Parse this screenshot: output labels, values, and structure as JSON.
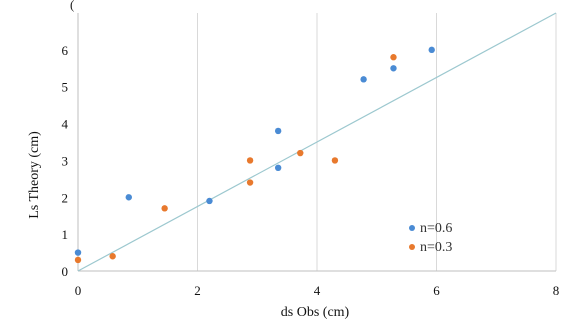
{
  "header_fragment": "(partially cut-off text at top of image)",
  "chart_data": {
    "type": "scatter",
    "title": "",
    "xlabel": "ds Obs (cm)",
    "ylabel": "Ls Theory (cm)",
    "xlim": [
      0,
      8
    ],
    "ylim": [
      0,
      7
    ],
    "x_ticks": [
      0,
      2,
      4,
      6,
      8
    ],
    "x_tick_labels": [
      "0",
      "2",
      "4",
      "6",
      "8"
    ],
    "y_ticks": [
      0,
      1,
      2,
      3,
      4,
      5,
      6
    ],
    "y_tick_labels": [
      "0",
      "1",
      "2",
      "3",
      "4",
      "5",
      "6"
    ],
    "grid": "vertical",
    "legend_position": "bottom-right",
    "reference_line": {
      "x": [
        0,
        8
      ],
      "y": [
        0,
        7
      ],
      "color": "#9cc8cf"
    },
    "series": [
      {
        "name": "n=0.6",
        "color": "#4a8bd4",
        "points": [
          {
            "x": 0.0,
            "y": 0.5
          },
          {
            "x": 0.85,
            "y": 2.0
          },
          {
            "x": 2.2,
            "y": 1.9
          },
          {
            "x": 3.35,
            "y": 2.8
          },
          {
            "x": 3.35,
            "y": 3.8
          },
          {
            "x": 4.78,
            "y": 5.2
          },
          {
            "x": 5.28,
            "y": 5.5
          },
          {
            "x": 5.92,
            "y": 6.0
          }
        ]
      },
      {
        "name": "n=0.3",
        "color": "#e8792d",
        "points": [
          {
            "x": 0.0,
            "y": 0.3
          },
          {
            "x": 0.58,
            "y": 0.4
          },
          {
            "x": 1.45,
            "y": 1.7
          },
          {
            "x": 2.88,
            "y": 2.4
          },
          {
            "x": 2.88,
            "y": 3.0
          },
          {
            "x": 3.72,
            "y": 3.2
          },
          {
            "x": 4.3,
            "y": 3.0
          },
          {
            "x": 5.28,
            "y": 5.8
          }
        ]
      }
    ]
  }
}
